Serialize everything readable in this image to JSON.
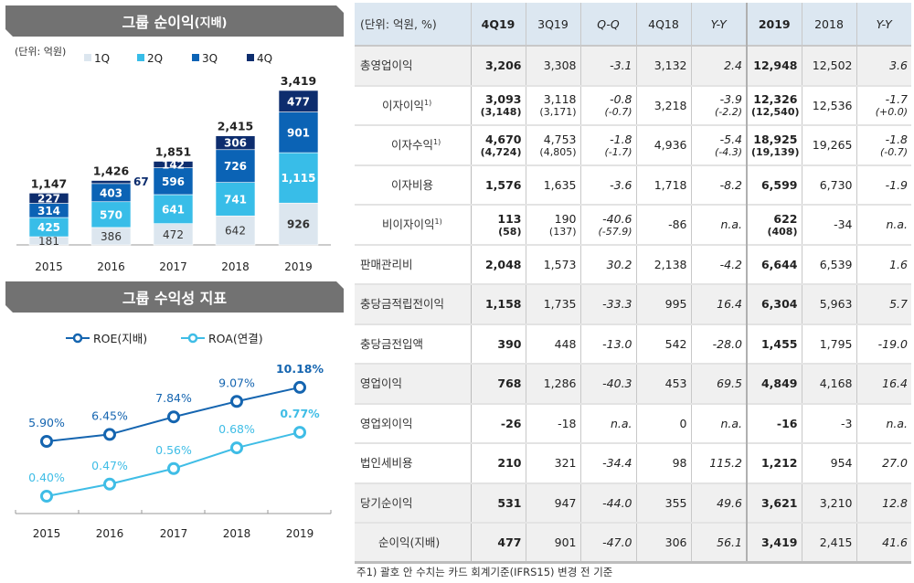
{
  "chart_data": [
    {
      "type": "bar",
      "stacked": true,
      "title": "그룹 순이익",
      "title_suffix": "(지배)",
      "unit": "(단위: 억원)",
      "categories": [
        "2015",
        "2016",
        "2017",
        "2018",
        "2019"
      ],
      "series": [
        {
          "name": "1Q",
          "color": "#dce6ef",
          "values": [
            181,
            386,
            472,
            642,
            926
          ]
        },
        {
          "name": "2Q",
          "color": "#38bde8",
          "values": [
            425,
            570,
            641,
            741,
            1115
          ]
        },
        {
          "name": "3Q",
          "color": "#0b63b5",
          "values": [
            314,
            403,
            596,
            726,
            901
          ]
        },
        {
          "name": "4Q",
          "color": "#0d2d6e",
          "values": [
            227,
            67,
            142,
            306,
            477
          ]
        }
      ],
      "totals": [
        "1,147",
        "1,426",
        "1,851",
        "2,415",
        "3,419"
      ],
      "value_labels": [
        [
          "181",
          "386",
          "472",
          "642",
          "926"
        ],
        [
          "425",
          "570",
          "641",
          "741",
          "1,115"
        ],
        [
          "314",
          "403",
          "596",
          "726",
          "901"
        ],
        [
          "227",
          "67",
          "142",
          "306",
          "477"
        ]
      ],
      "legend": "top"
    },
    {
      "type": "line",
      "title": "그룹 수익성 지표",
      "categories": [
        "2015",
        "2016",
        "2017",
        "2018",
        "2019"
      ],
      "series": [
        {
          "name": "ROE(지배)",
          "color": "#1565b0",
          "values": [
            5.9,
            6.45,
            7.84,
            9.07,
            10.18
          ],
          "labels": [
            "5.90%",
            "6.45%",
            "7.84%",
            "9.07%",
            "10.18%"
          ]
        },
        {
          "name": "ROA(연결)",
          "color": "#3fbde6",
          "values": [
            0.4,
            0.47,
            0.56,
            0.68,
            0.77
          ],
          "labels": [
            "0.40%",
            "0.47%",
            "0.56%",
            "0.68%",
            "0.77%"
          ]
        }
      ],
      "legend": "top"
    }
  ],
  "table": {
    "unit": "(단위: 억원, %)",
    "columns": [
      "4Q19",
      "3Q19",
      "Q-Q",
      "4Q18",
      "Y-Y",
      "2019",
      "2018",
      "Y-Y"
    ],
    "footnote_mark": "1)",
    "rows": [
      {
        "label": "총영업이익",
        "values": [
          "3,206",
          "3,308",
          "-3.1",
          "3,132",
          "2.4",
          "12,948",
          "12,502",
          "3.6"
        ]
      },
      {
        "label": "이자이익",
        "note": true,
        "values": [
          "3,093",
          "3,118",
          "-0.8",
          "3,218",
          "-3.9",
          "12,326",
          "12,536",
          "-1.7"
        ],
        "subs": [
          "(3,148)",
          "(3,171)",
          "(-0.7)",
          "",
          "(-2.2)",
          "(12,540)",
          "",
          "(+0.0)"
        ]
      },
      {
        "label": "이자수익",
        "note": true,
        "values": [
          "4,670",
          "4,753",
          "-1.8",
          "4,936",
          "-5.4",
          "18,925",
          "19,265",
          "-1.8"
        ],
        "subs": [
          "(4,724)",
          "(4,805)",
          "(-1.7)",
          "",
          "(-4.3)",
          "(19,139)",
          "",
          "(-0.7)"
        ]
      },
      {
        "label": "이자비용",
        "values": [
          "1,576",
          "1,635",
          "-3.6",
          "1,718",
          "-8.2",
          "6,599",
          "6,730",
          "-1.9"
        ]
      },
      {
        "label": "비이자이익",
        "note": true,
        "values": [
          "113",
          "190",
          "-40.6",
          "-86",
          "n.a.",
          "622",
          "-34",
          "n.a."
        ],
        "subs": [
          "(58)",
          "(137)",
          "(-57.9)",
          "",
          "",
          "(408)",
          "",
          ""
        ]
      },
      {
        "label": "판매관리비",
        "values": [
          "2,048",
          "1,573",
          "30.2",
          "2,138",
          "-4.2",
          "6,644",
          "6,539",
          "1.6"
        ]
      },
      {
        "label": "충당금적립전이익",
        "values": [
          "1,158",
          "1,735",
          "-33.3",
          "995",
          "16.4",
          "6,304",
          "5,963",
          "5.7"
        ]
      },
      {
        "label": "충당금전입액",
        "values": [
          "390",
          "448",
          "-13.0",
          "542",
          "-28.0",
          "1,455",
          "1,795",
          "-19.0"
        ]
      },
      {
        "label": "영업이익",
        "values": [
          "768",
          "1,286",
          "-40.3",
          "453",
          "69.5",
          "4,849",
          "4,168",
          "16.4"
        ]
      },
      {
        "label": "영업외이익",
        "values": [
          "-26",
          "-18",
          "n.a.",
          "0",
          "n.a.",
          "-16",
          "-3",
          "n.a."
        ]
      },
      {
        "label": "법인세비용",
        "values": [
          "210",
          "321",
          "-34.4",
          "98",
          "115.2",
          "1,212",
          "954",
          "27.0"
        ]
      },
      {
        "label": "당기순이익",
        "values": [
          "531",
          "947",
          "-44.0",
          "355",
          "49.6",
          "3,621",
          "3,210",
          "12.8"
        ]
      },
      {
        "label": "순이익(지배)",
        "values": [
          "477",
          "901",
          "-47.0",
          "306",
          "56.1",
          "3,419",
          "2,415",
          "41.6"
        ]
      }
    ],
    "footnote": "주1) 괄호 안 수치는 카드 회계기준(IFRS15) 변경 전 기준"
  }
}
